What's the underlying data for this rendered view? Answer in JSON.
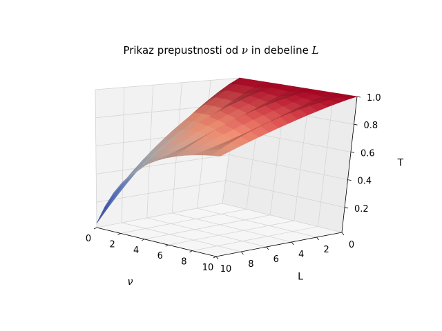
{
  "chart_data": {
    "type": "surface",
    "title": {
      "prefix": "Prikaz prepustnosti od ",
      "nu": "ν",
      "middle": " in debeline ",
      "L": "L"
    },
    "x_axis": {
      "label": "ν",
      "ticks": [
        "10",
        "8",
        "6",
        "4",
        "2",
        "0"
      ],
      "range": [
        0,
        10
      ]
    },
    "y_axis": {
      "label": "L",
      "ticks": [
        "10",
        "8",
        "6",
        "4",
        "2",
        "0"
      ],
      "range": [
        0,
        10
      ]
    },
    "z_axis": {
      "label": "T",
      "ticks": [
        "0.2",
        "0.4",
        "0.6",
        "0.8",
        "1.0"
      ],
      "range": [
        0.02,
        1.0
      ]
    },
    "colormap": "coolwarm",
    "grid": true,
    "description_data": {
      "x_nu": [
        0,
        1,
        2,
        3,
        4,
        5,
        6,
        7,
        8,
        9,
        10
      ],
      "y_L": [
        0,
        1,
        2,
        3,
        4,
        5,
        6,
        7,
        8,
        9,
        10
      ],
      "T_at_L10": [
        0.05,
        0.12,
        0.22,
        0.33,
        0.44,
        0.54,
        0.62,
        0.68,
        0.72,
        0.73,
        0.73
      ],
      "T_at_L0": [
        1.0,
        1.0,
        1.0,
        1.0,
        1.0,
        1.0,
        1.0,
        1.0,
        1.0,
        1.0,
        1.0
      ]
    }
  }
}
